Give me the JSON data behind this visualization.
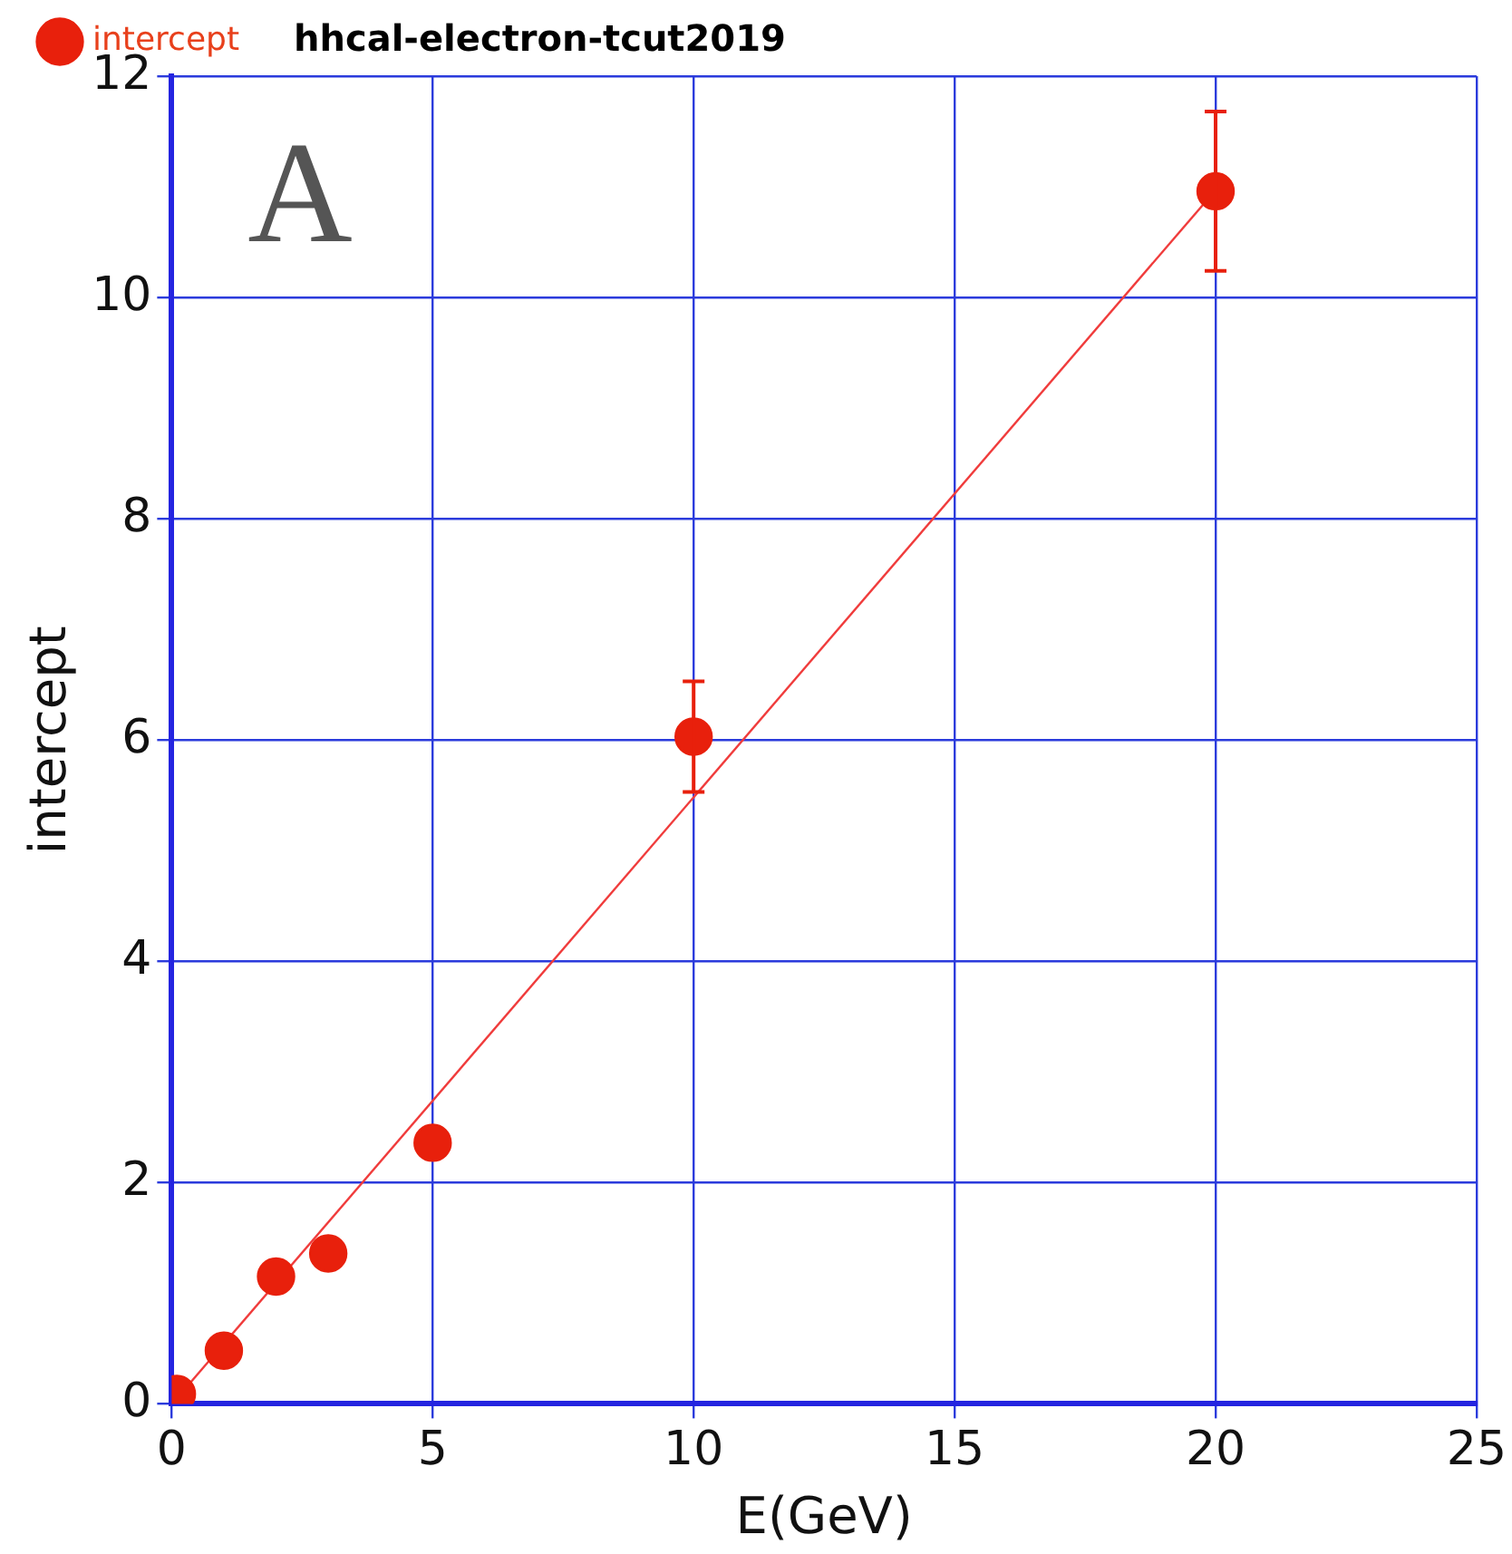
{
  "chart_data": {
    "type": "scatter",
    "title": "hhcal-electron-tcut2019",
    "xlabel": "E(GeV)",
    "ylabel": "intercept",
    "annotations": [
      "A"
    ],
    "xlim": [
      0,
      25
    ],
    "xticks": [
      0,
      5,
      10,
      15,
      20,
      25
    ],
    "ylim": [
      0,
      12
    ],
    "yticks": [
      0,
      2,
      4,
      6,
      8,
      10,
      12
    ],
    "grid": true,
    "legend": "top left",
    "marker": "circle",
    "series": [
      {
        "name": "intercept",
        "color": "#e8200c",
        "x": [
          0.1,
          1,
          2,
          3,
          5,
          10,
          20
        ],
        "values": [
          0.09,
          0.48,
          1.15,
          1.36,
          2.36,
          6.03,
          10.96
        ],
        "errors": [
          null,
          null,
          null,
          null,
          null,
          0.5,
          0.72
        ]
      },
      {
        "type": "line",
        "color": "#f03c3c",
        "x": [
          0.1,
          20
        ],
        "values": [
          0.05,
          10.97
        ],
        "marker": "none"
      }
    ]
  }
}
